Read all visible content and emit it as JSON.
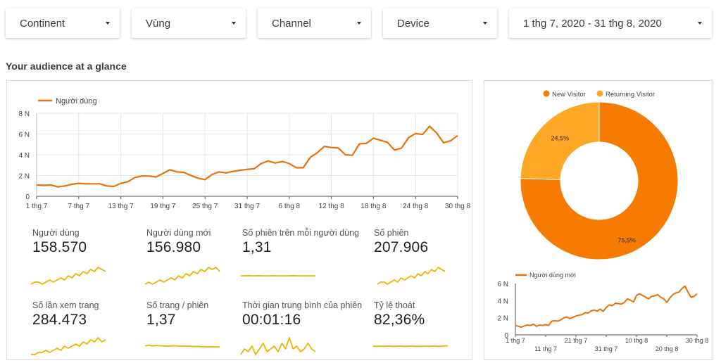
{
  "filters": {
    "continent": "Continent",
    "region": "Vùng",
    "channel": "Channel",
    "device": "Device",
    "date_range": "1 thg 7, 2020 - 31 thg 8, 2020"
  },
  "section_title": "Your audience at a glance",
  "chart_data": [
    {
      "type": "line",
      "legend": "Người dùng",
      "x_ticks": [
        "1 thg 7",
        "7 thg 7",
        "13 thg 7",
        "19 thg 7",
        "25 thg 7",
        "31 thg 7",
        "6 thg 8",
        "12 thg 8",
        "18 thg 8",
        "24 thg 8",
        "30 thg 8"
      ],
      "y_ticks": [
        "0",
        "2 N",
        "4 N",
        "6 N",
        "8 N"
      ],
      "ylim": [
        0,
        8000
      ],
      "grid": true,
      "series": [
        {
          "name": "Người dùng",
          "x_start": "1 thg 7, 2020",
          "values": [
            1100,
            1050,
            1100,
            900,
            1000,
            1150,
            1250,
            1200,
            1200,
            1200,
            1000,
            950,
            1250,
            1400,
            1800,
            1950,
            1950,
            1850,
            2200,
            2550,
            2350,
            2300,
            2000,
            1750,
            1600,
            2100,
            2350,
            2250,
            2400,
            2500,
            2600,
            2650,
            3150,
            3400,
            3200,
            3350,
            3150,
            2750,
            2750,
            3750,
            4200,
            4800,
            4700,
            4650,
            4000,
            3950,
            5050,
            5100,
            5600,
            5400,
            5200,
            4450,
            4650,
            5650,
            6050,
            5950,
            6750,
            6100,
            5150,
            5350,
            5850
          ]
        }
      ]
    },
    {
      "type": "pie",
      "legend": [
        "New Visitor",
        "Returning Visitor"
      ],
      "slices": [
        {
          "name": "New Visitor",
          "value": 75.5,
          "label": "75,5%"
        },
        {
          "name": "Returning Visitor",
          "value": 24.5,
          "label": "24,5%"
        }
      ],
      "colors": [
        "#f57c00",
        "#ffa726"
      ]
    },
    {
      "type": "line",
      "legend": "Người dùng mới",
      "x_ticks": [
        "1 thg 7",
        "11 thg 7",
        "21 thg 7",
        "31 thg 7",
        "10 thg 8",
        "20 thg 8",
        "30 thg 8"
      ],
      "y_ticks": [
        "0",
        "2 N",
        "4 N",
        "6 N"
      ],
      "ylim": [
        0,
        6000
      ],
      "series": [
        {
          "name": "Người dùng mới",
          "x_start": "1 thg 7, 2020",
          "values": [
            1100,
            1000,
            900,
            1050,
            1150,
            1100,
            1250,
            1000,
            1150,
            1100,
            1200,
            1100,
            1600,
            1650,
            1600,
            1750,
            2000,
            2100,
            1900,
            2050,
            2200,
            2300,
            2350,
            2600,
            2550,
            2800,
            2900,
            2750,
            3000,
            2750,
            3200,
            3500,
            3400,
            3700,
            3650,
            3600,
            3800,
            4200,
            4050,
            3850,
            4600,
            4800,
            4600,
            4400,
            4200,
            4500,
            4550,
            4700,
            4400,
            4200,
            3800,
            4300,
            4700,
            4900,
            5000,
            5400,
            5700,
            5000,
            4400,
            4500,
            4800
          ]
        }
      ]
    }
  ],
  "metrics": [
    {
      "label": "Người dùng",
      "value": "158.570",
      "spark": [
        2,
        3,
        3,
        2,
        3,
        4,
        3,
        4,
        5,
        4,
        6,
        5,
        7,
        6,
        8,
        7,
        9,
        8,
        10,
        9,
        8
      ]
    },
    {
      "label": "Người dùng mới",
      "value": "156.980",
      "spark": [
        2,
        3,
        2,
        3,
        4,
        3,
        4,
        5,
        4,
        6,
        5,
        7,
        6,
        8,
        7,
        9,
        8,
        10,
        9,
        10,
        8
      ]
    },
    {
      "label": "Số phiên trên mỗi người dùng",
      "value": "1,31",
      "spark": [
        5,
        5,
        5.1,
        5,
        5,
        5.1,
        5,
        5,
        5,
        5.1,
        5,
        5,
        5,
        5,
        5.1,
        5,
        5,
        5,
        5,
        5,
        5
      ]
    },
    {
      "label": "Số phiên",
      "value": "207.906",
      "spark": [
        2,
        3,
        3,
        2,
        3,
        4,
        3,
        5,
        4,
        5,
        6,
        5,
        7,
        6,
        8,
        7,
        9,
        8,
        10,
        9,
        8
      ]
    },
    {
      "label": "Số lần xem trang",
      "value": "284.473",
      "spark": [
        2,
        2,
        3,
        3,
        4,
        3,
        4,
        5,
        4,
        6,
        5,
        6,
        7,
        6,
        8,
        7,
        9,
        8,
        10,
        8,
        9
      ]
    },
    {
      "label": "Số trang / phiên",
      "value": "1,37",
      "spark": [
        6,
        6.3,
        6,
        6.2,
        6.1,
        6,
        5.9,
        6,
        6.1,
        5.9,
        6,
        5.8,
        5.9,
        5.7,
        5.8,
        5.6,
        5.7,
        5.5,
        5.6,
        5.5,
        5.5
      ]
    },
    {
      "label": "Thời gian trung bình của phiên",
      "value": "00:01:16",
      "spark": [
        4,
        5,
        4.5,
        5.5,
        4,
        5,
        6,
        4.5,
        5,
        5.5,
        4.5,
        6,
        5,
        7,
        5,
        5.5,
        4.5,
        5,
        6,
        5,
        4.5
      ]
    },
    {
      "label": "Tỷ lệ thoát",
      "value": "82,36%",
      "spark": [
        5,
        5,
        5.1,
        5,
        5.1,
        5,
        5,
        5.1,
        5,
        5,
        5.1,
        5,
        5,
        5,
        5.1,
        5,
        5.1,
        5,
        5,
        5.2,
        5.2
      ]
    }
  ],
  "colors": {
    "main_line": "#e8710a",
    "spark": "#f0b400",
    "new_visitor": "#f57c00",
    "returning_visitor": "#ffa726",
    "grid": "#e6e6e6"
  }
}
